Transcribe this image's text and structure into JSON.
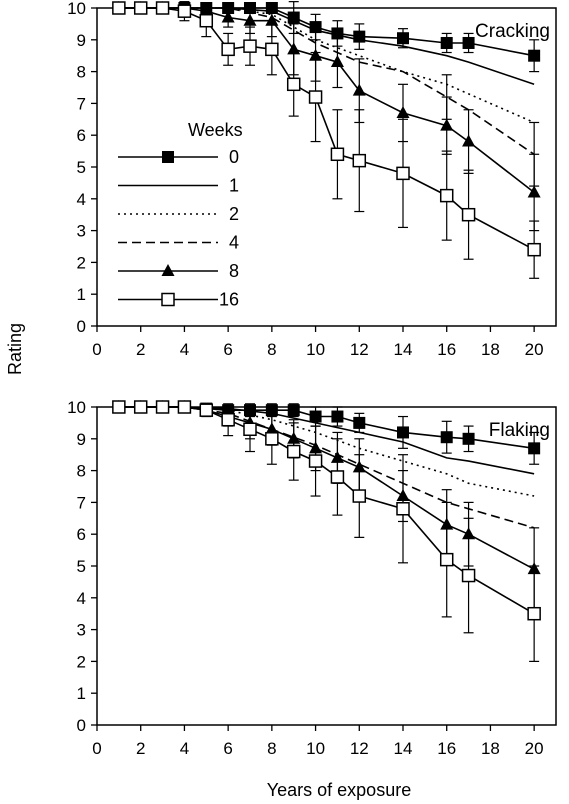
{
  "figure": {
    "ylabel": "Rating",
    "xlabel": "Years of exposure",
    "legend_title": "Weeks"
  },
  "chart_data": [
    {
      "type": "line",
      "title": "Cracking",
      "xlabel": "Years of exposure",
      "ylabel": "Rating",
      "xlim": [
        0,
        21
      ],
      "ylim": [
        0,
        10
      ],
      "xticks": [
        "0",
        "2",
        "4",
        "6",
        "8",
        "10",
        "12",
        "14",
        "16",
        "18",
        "20"
      ],
      "yticks": [
        "0",
        "1",
        "2",
        "3",
        "4",
        "5",
        "6",
        "7",
        "8",
        "9",
        "10"
      ],
      "grid": false,
      "legend": {
        "title": "Weeks",
        "placement": "left"
      },
      "series": [
        {
          "name": "0",
          "style": "solid",
          "marker": "filled-square",
          "x": [
            1,
            2,
            3,
            4,
            5,
            6,
            7,
            8,
            9,
            10,
            11,
            12,
            14,
            16,
            17,
            20
          ],
          "y": [
            10,
            10,
            10,
            10,
            10,
            10,
            10,
            10,
            9.7,
            9.4,
            9.2,
            9.1,
            9.05,
            8.9,
            8.9,
            8.5
          ],
          "err": [
            0,
            0,
            0,
            0,
            0,
            0,
            0,
            0,
            0.5,
            0.4,
            0.4,
            0.4,
            0.3,
            0.3,
            0.3,
            0.5
          ]
        },
        {
          "name": "1",
          "style": "solid",
          "marker": "none",
          "x": [
            1,
            4,
            6,
            8,
            10,
            12,
            14,
            16,
            17,
            20
          ],
          "y": [
            10,
            10,
            10,
            9.9,
            9.3,
            9.0,
            8.8,
            8.5,
            8.3,
            7.6
          ]
        },
        {
          "name": "2",
          "style": "dotted",
          "marker": "none",
          "x": [
            1,
            4,
            6,
            8,
            10,
            12,
            14,
            16,
            17,
            20
          ],
          "y": [
            10,
            10,
            10,
            9.8,
            9.0,
            8.5,
            8.0,
            7.6,
            7.3,
            6.4
          ]
        },
        {
          "name": "4",
          "style": "dashed",
          "marker": "none",
          "x": [
            1,
            4,
            6,
            8,
            10,
            12,
            14,
            16,
            17,
            20
          ],
          "y": [
            10,
            10,
            10,
            9.7,
            8.9,
            8.3,
            8.0,
            7.2,
            6.8,
            5.4
          ],
          "err": [
            0,
            0,
            0,
            0,
            0,
            0,
            0,
            0.7,
            0,
            1.0
          ]
        },
        {
          "name": "8",
          "style": "solid",
          "marker": "filled-triangle",
          "x": [
            1,
            2,
            3,
            4,
            5,
            6,
            7,
            8,
            9,
            10,
            11,
            12,
            14,
            16,
            17,
            20
          ],
          "y": [
            10,
            10,
            10,
            10,
            9.9,
            9.7,
            9.6,
            9.6,
            8.7,
            8.5,
            8.3,
            7.4,
            6.7,
            6.3,
            5.8,
            4.2
          ],
          "err": [
            0,
            0,
            0,
            0,
            0,
            0.3,
            0.4,
            0.5,
            0.8,
            0.8,
            0.8,
            1.0,
            0.9,
            0.9,
            1.0,
            1.2
          ]
        },
        {
          "name": "16",
          "style": "solid",
          "marker": "open-square",
          "x": [
            1,
            2,
            3,
            4,
            5,
            6,
            7,
            8,
            9,
            10,
            11,
            12,
            14,
            16,
            17,
            20
          ],
          "y": [
            10,
            10,
            10,
            9.9,
            9.6,
            8.7,
            8.8,
            8.7,
            7.6,
            7.2,
            5.4,
            5.2,
            4.8,
            4.1,
            3.5,
            2.4
          ],
          "err": [
            0,
            0,
            0,
            0.3,
            0.5,
            0.5,
            0.6,
            0.8,
            1.0,
            1.4,
            1.4,
            1.6,
            1.7,
            1.4,
            1.4,
            0.9
          ]
        }
      ]
    },
    {
      "type": "line",
      "title": "Flaking",
      "xlabel": "Years of exposure",
      "ylabel": "Rating",
      "xlim": [
        0,
        21
      ],
      "ylim": [
        0,
        10
      ],
      "xticks": [
        "0",
        "2",
        "4",
        "6",
        "8",
        "10",
        "12",
        "14",
        "16",
        "18",
        "20"
      ],
      "yticks": [
        "0",
        "1",
        "2",
        "3",
        "4",
        "5",
        "6",
        "7",
        "8",
        "9",
        "10"
      ],
      "grid": false,
      "series": [
        {
          "name": "0",
          "style": "solid",
          "marker": "filled-square",
          "x": [
            1,
            2,
            3,
            4,
            5,
            6,
            7,
            8,
            9,
            10,
            11,
            12,
            14,
            16,
            17,
            20
          ],
          "y": [
            10,
            10,
            10,
            10,
            9.95,
            9.9,
            9.9,
            9.9,
            9.9,
            9.7,
            9.7,
            9.5,
            9.2,
            9.05,
            9.0,
            8.7
          ],
          "err": [
            0,
            0,
            0,
            0,
            0,
            0,
            0.2,
            0.2,
            0.2,
            0.3,
            0.3,
            0.3,
            0.5,
            0.5,
            0.4,
            0.5
          ]
        },
        {
          "name": "1",
          "style": "solid",
          "marker": "none",
          "x": [
            1,
            4,
            6,
            8,
            10,
            12,
            14,
            16,
            17,
            20
          ],
          "y": [
            10,
            10,
            9.95,
            9.8,
            9.5,
            9.2,
            8.9,
            8.4,
            8.3,
            7.9
          ]
        },
        {
          "name": "2",
          "style": "dotted",
          "marker": "none",
          "x": [
            1,
            4,
            6,
            8,
            10,
            12,
            14,
            16,
            17,
            20
          ],
          "y": [
            10,
            10,
            9.9,
            9.6,
            9.2,
            8.7,
            8.3,
            7.9,
            7.6,
            7.2
          ]
        },
        {
          "name": "4",
          "style": "dashed",
          "marker": "none",
          "x": [
            1,
            4,
            6,
            8,
            10,
            12,
            14,
            16,
            17,
            20
          ],
          "y": [
            10,
            10,
            9.8,
            9.3,
            8.8,
            8.2,
            7.6,
            7.0,
            6.8,
            6.2
          ]
        },
        {
          "name": "8",
          "style": "solid",
          "marker": "filled-triangle",
          "x": [
            1,
            2,
            3,
            4,
            5,
            6,
            7,
            8,
            9,
            10,
            11,
            12,
            14,
            16,
            17,
            20
          ],
          "y": [
            10,
            10,
            10,
            10,
            9.9,
            9.7,
            9.5,
            9.3,
            9.0,
            8.7,
            8.4,
            8.1,
            7.2,
            6.3,
            6.0,
            4.9
          ],
          "err": [
            0,
            0,
            0,
            0,
            0,
            0.3,
            0.5,
            0.5,
            0.6,
            0.7,
            0.8,
            0.9,
            0.8,
            1.1,
            1.0,
            1.3
          ]
        },
        {
          "name": "16",
          "style": "solid",
          "marker": "open-square",
          "x": [
            1,
            2,
            3,
            4,
            5,
            6,
            7,
            8,
            9,
            10,
            11,
            12,
            14,
            16,
            17,
            20
          ],
          "y": [
            10,
            10,
            10,
            10,
            9.9,
            9.6,
            9.3,
            9.0,
            8.6,
            8.3,
            7.8,
            7.2,
            6.8,
            5.2,
            4.7,
            3.5
          ],
          "err": [
            0,
            0,
            0,
            0,
            0.2,
            0.5,
            0.7,
            0.8,
            0.9,
            1.1,
            1.2,
            1.3,
            1.7,
            1.8,
            1.8,
            1.5
          ]
        }
      ]
    }
  ]
}
